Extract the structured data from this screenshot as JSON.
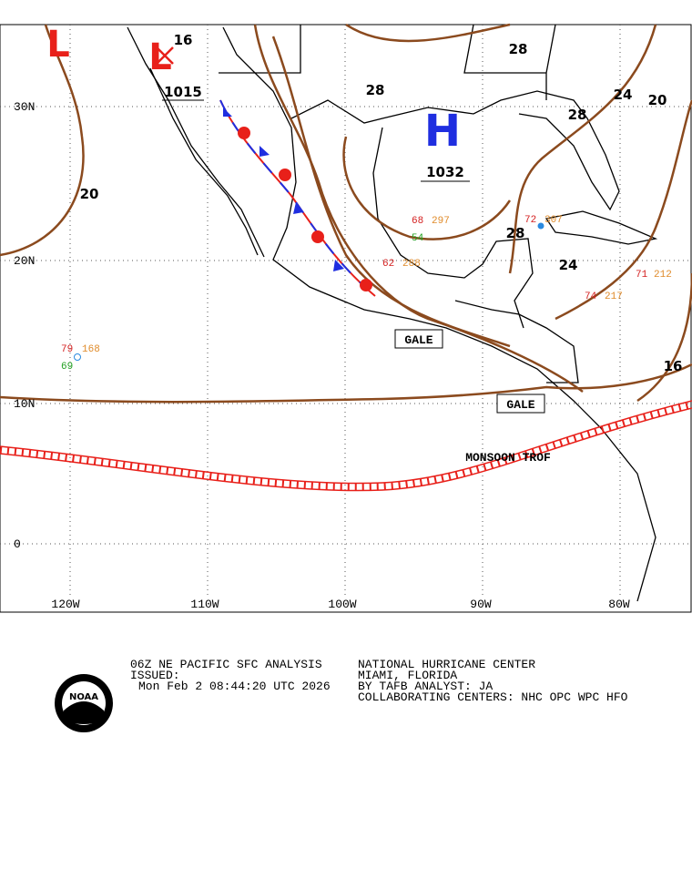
{
  "map": {
    "latitude_labels": [
      "30N",
      "20N",
      "10N",
      "0"
    ],
    "longitude_labels": [
      "120W",
      "110W",
      "100W",
      "90W",
      "80W"
    ],
    "pressure_centers": [
      {
        "symbol": "L",
        "label": "1015"
      },
      {
        "symbol": "L"
      },
      {
        "symbol": "H",
        "label": "1032"
      }
    ],
    "isobar_labels": [
      "20",
      "16",
      "28",
      "28",
      "24",
      "20",
      "28",
      "28",
      "24",
      "16"
    ],
    "warnings": [
      "GALE",
      "GALE"
    ],
    "features": [
      "MONSOON TROF"
    ],
    "station_values": [
      "79",
      "168",
      "69",
      "68",
      "297",
      "54",
      "62",
      "288",
      "74",
      "217",
      "71",
      "212",
      "72",
      "307"
    ]
  },
  "footer": {
    "product": "06Z NE PACIFIC SFC ANALYSIS",
    "issued": "ISSUED:",
    "time": "Mon Feb 2 08:44:20 UTC 2026",
    "center": "NATIONAL HURRICANE CENTER",
    "location": "MIAMI, FLORIDA",
    "analyst": "BY TAFB ANALYST: JA",
    "collaborating": "COLLABORATING CENTERS: NHC OPC WPC HFO",
    "logo": "NOAA"
  }
}
